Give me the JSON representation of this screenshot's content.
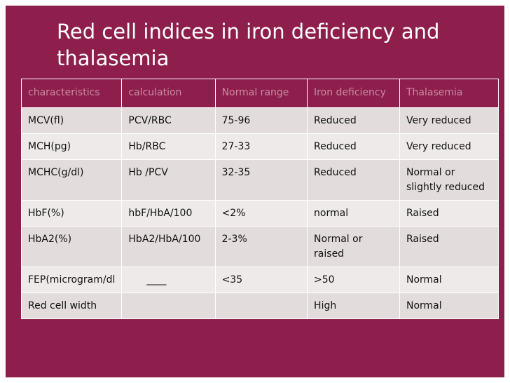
{
  "title": "Red cell indices in iron deficiency and thalasemia",
  "table": {
    "headers": [
      "characteristics",
      "calculation",
      "Normal range",
      "Iron deficiency",
      "Thalasemia"
    ],
    "rows": [
      [
        "MCV(fl)",
        "PCV/RBC",
        "75-96",
        "Reduced",
        "Very reduced"
      ],
      [
        "MCH(pg)",
        "Hb/RBC",
        "27-33",
        "Reduced",
        "Very reduced"
      ],
      [
        "MCHC(g/dl)",
        "Hb /PCV",
        "32-35",
        "Reduced",
        "Normal or slightly reduced"
      ],
      [
        "HbF(%)",
        "hbF/HbA/100",
        "<2%",
        "normal",
        "Raised"
      ],
      [
        "HbA2(%)",
        "HbA2/HbA/100",
        "2-3%",
        "Normal or raised",
        "Raised"
      ],
      [
        "FEP(microgram/dl",
        "____",
        "<35",
        ">50",
        "Normal"
      ],
      [
        "Red cell width",
        "",
        "",
        "High",
        "Normal"
      ]
    ]
  },
  "colors": {
    "background": "#8e1f4c",
    "header_text": "#c98aa4",
    "cell": "#e3dcdc",
    "cell_alt": "#efeaea"
  }
}
